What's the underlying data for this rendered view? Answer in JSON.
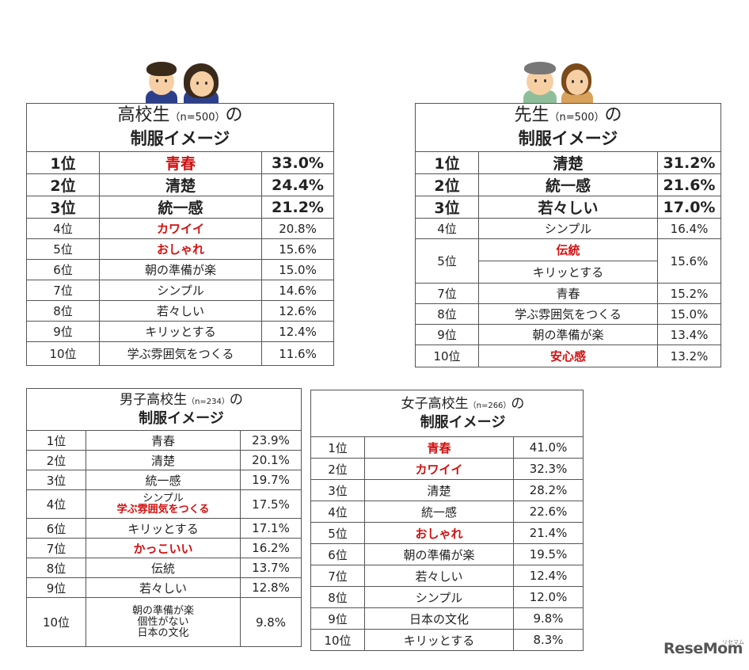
{
  "panel_high": {
    "title_main": "高校生",
    "title_n": "（n=500）",
    "title_no": "の",
    "title_sub": "制服イメージ",
    "rows": [
      {
        "rank": "1位",
        "label": "青春",
        "pct": "33.0%"
      },
      {
        "rank": "2位",
        "label": "清楚",
        "pct": "24.4%"
      },
      {
        "rank": "3位",
        "label": "統一感",
        "pct": "21.2%"
      },
      {
        "rank": "4位",
        "label": "カワイイ",
        "pct": "20.8%"
      },
      {
        "rank": "5位",
        "label": "おしゃれ",
        "pct": "15.6%"
      },
      {
        "rank": "6位",
        "label": "朝の準備が楽",
        "pct": "15.0%"
      },
      {
        "rank": "7位",
        "label": "シンプル",
        "pct": "14.6%"
      },
      {
        "rank": "8位",
        "label": "若々しい",
        "pct": "12.6%"
      },
      {
        "rank": "9位",
        "label": "キリッとする",
        "pct": "12.4%"
      },
      {
        "rank": "10位",
        "label": "学ぶ雰囲気をつくる",
        "pct": "11.6%"
      }
    ]
  },
  "panel_teacher": {
    "title_main": "先生",
    "title_n": "（n=500）",
    "title_no": "の",
    "title_sub": "制服イメージ",
    "rows": [
      {
        "rank": "1位",
        "label": "清楚",
        "pct": "31.2%"
      },
      {
        "rank": "2位",
        "label": "統一感",
        "pct": "21.6%"
      },
      {
        "rank": "3位",
        "label": "若々しい",
        "pct": "17.0%"
      },
      {
        "rank": "4位",
        "label": "シンプル",
        "pct": "16.4%"
      },
      {
        "rank": "5位",
        "label": "伝統",
        "label2": "キリッとする",
        "pct": "15.6%"
      },
      {
        "rank": "7位",
        "label": "青春",
        "pct": "15.2%"
      },
      {
        "rank": "8位",
        "label": "学ぶ雰囲気をつくる",
        "pct": "15.0%"
      },
      {
        "rank": "9位",
        "label": "朝の準備が楽",
        "pct": "13.4%"
      },
      {
        "rank": "10位",
        "label": "安心感",
        "pct": "13.2%"
      }
    ]
  },
  "panel_boys": {
    "title_main": "男子高校生",
    "title_n": "（n=234）",
    "title_no": "の",
    "title_sub": "制服イメージ",
    "rows": [
      {
        "rank": "1位",
        "label": "青春",
        "pct": "23.9%"
      },
      {
        "rank": "2位",
        "label": "清楚",
        "pct": "20.1%"
      },
      {
        "rank": "3位",
        "label": "統一感",
        "pct": "19.7%"
      },
      {
        "rank": "4位",
        "label": "シンプル",
        "label2": "学ぶ雰囲気をつくる",
        "pct": "17.5%"
      },
      {
        "rank": "6位",
        "label": "キリッとする",
        "pct": "17.1%"
      },
      {
        "rank": "7位",
        "label": "かっこいい",
        "pct": "16.2%"
      },
      {
        "rank": "8位",
        "label": "伝統",
        "pct": "13.7%"
      },
      {
        "rank": "9位",
        "label": "若々しい",
        "pct": "12.8%"
      },
      {
        "rank": "10位",
        "label": "朝の準備が楽",
        "label2": "個性がない",
        "label3": "日本の文化",
        "pct": "9.8%"
      }
    ]
  },
  "panel_girls": {
    "title_main": "女子高校生",
    "title_n": "（n=266）",
    "title_no": "の",
    "title_sub": "制服イメージ",
    "rows": [
      {
        "rank": "1位",
        "label": "青春",
        "pct": "41.0%"
      },
      {
        "rank": "2位",
        "label": "カワイイ",
        "pct": "32.3%"
      },
      {
        "rank": "3位",
        "label": "清楚",
        "pct": "28.2%"
      },
      {
        "rank": "4位",
        "label": "統一感",
        "pct": "22.6%"
      },
      {
        "rank": "5位",
        "label": "おしゃれ",
        "pct": "21.4%"
      },
      {
        "rank": "6位",
        "label": "朝の準備が楽",
        "pct": "19.5%"
      },
      {
        "rank": "7位",
        "label": "若々しい",
        "pct": "12.4%"
      },
      {
        "rank": "8位",
        "label": "シンプル",
        "pct": "12.0%"
      },
      {
        "rank": "9位",
        "label": "日本の文化",
        "pct": "9.8%"
      },
      {
        "rank": "10位",
        "label": "キリッとする",
        "pct": "8.3%"
      }
    ]
  },
  "logo": {
    "main": "ReseMom",
    "sub": "リセマム"
  },
  "colors": {
    "highlight": "#d21010",
    "border": "#555555"
  }
}
